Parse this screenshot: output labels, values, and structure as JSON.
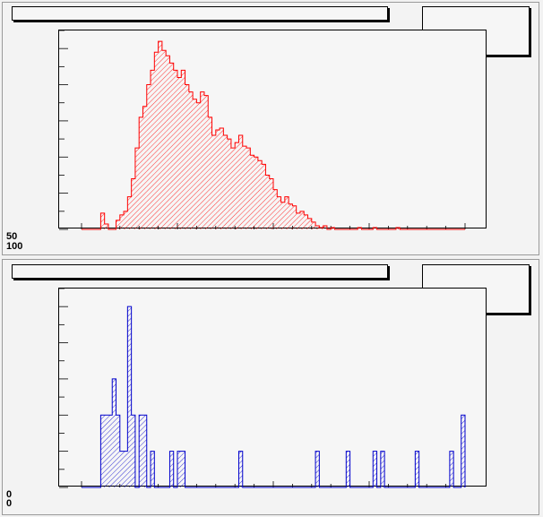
{
  "canvas": {
    "top_pad": {
      "title": "",
      "stats": "",
      "y_axis_labels": [
        "50",
        "100"
      ]
    },
    "bottom_pad": {
      "title": "",
      "stats": "",
      "y_axis_labels": [
        "0",
        "0"
      ]
    }
  },
  "chart_data": [
    {
      "type": "bar",
      "style": "histogram",
      "color": "#ff0000",
      "fill_pattern": "hatched",
      "nbins": 100,
      "ylim": [
        0,
        100
      ],
      "values": [
        0,
        0,
        0,
        0,
        0,
        9,
        3,
        0,
        0,
        5,
        8,
        10,
        18,
        28,
        45,
        62,
        68,
        80,
        88,
        98,
        104,
        99,
        96,
        92,
        88,
        84,
        88,
        80,
        76,
        72,
        70,
        76,
        74,
        62,
        52,
        55,
        56,
        52,
        50,
        45,
        48,
        52,
        46,
        45,
        41,
        40,
        38,
        36,
        30,
        28,
        22,
        18,
        15,
        18,
        14,
        13,
        9,
        10,
        8,
        6,
        4,
        2,
        1,
        2,
        0,
        1,
        0,
        0,
        0,
        0,
        0,
        0,
        1,
        0,
        0,
        0,
        1,
        0,
        0,
        0,
        0,
        0,
        1,
        0,
        0,
        0,
        0,
        0,
        0,
        0,
        0,
        0,
        0,
        0,
        0,
        0,
        0,
        0,
        0,
        0
      ]
    },
    {
      "type": "bar",
      "style": "histogram",
      "color": "#0000cc",
      "fill_pattern": "hatched",
      "nbins": 100,
      "ylim": [
        0,
        5
      ],
      "values": [
        0,
        0,
        0,
        0,
        0,
        2,
        2,
        2,
        3,
        2,
        1,
        1,
        5,
        2,
        0,
        2,
        2,
        0,
        1,
        0,
        0,
        0,
        0,
        1,
        0,
        1,
        1,
        0,
        0,
        0,
        0,
        0,
        0,
        0,
        0,
        0,
        0,
        0,
        0,
        0,
        0,
        1,
        0,
        0,
        0,
        0,
        0,
        0,
        0,
        0,
        0,
        0,
        0,
        0,
        0,
        0,
        0,
        0,
        0,
        0,
        0,
        1,
        0,
        0,
        0,
        0,
        0,
        0,
        0,
        1,
        0,
        0,
        0,
        0,
        0,
        0,
        1,
        0,
        1,
        0,
        0,
        0,
        0,
        0,
        0,
        0,
        0,
        1,
        0,
        0,
        0,
        0,
        0,
        0,
        0,
        0,
        1,
        0,
        0,
        2
      ]
    }
  ]
}
